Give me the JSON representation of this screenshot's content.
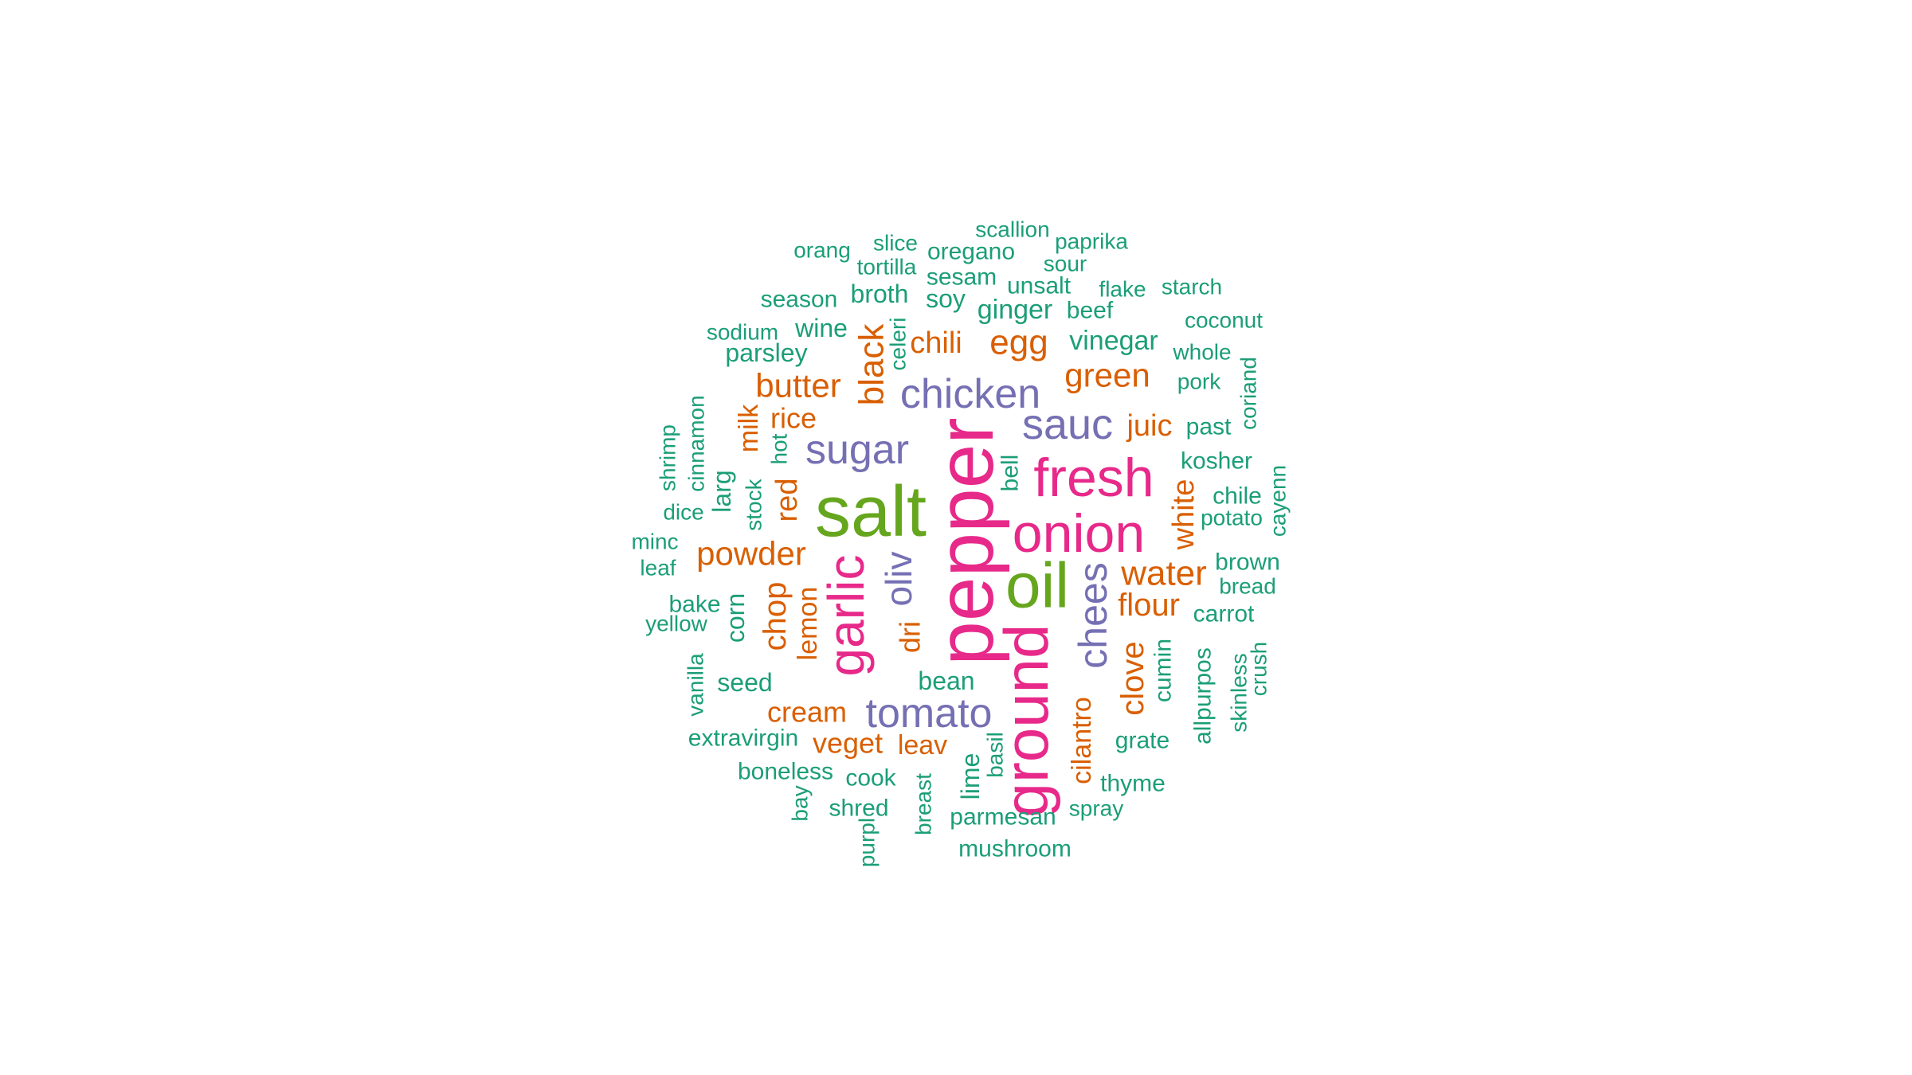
{
  "colors": {
    "background": "#ffffff",
    "teal": "#1b9e77",
    "orange": "#d95f02",
    "purple": "#7570b3",
    "pink": "#e7298a",
    "green": "#66a61e"
  },
  "words": [
    {
      "text": "pepper",
      "color": "pink"
    },
    {
      "text": "salt",
      "color": "green"
    },
    {
      "text": "oil",
      "color": "green"
    },
    {
      "text": "onion",
      "color": "pink"
    },
    {
      "text": "ground",
      "color": "pink"
    },
    {
      "text": "fresh",
      "color": "pink"
    },
    {
      "text": "garlic",
      "color": "pink"
    },
    {
      "text": "sugar",
      "color": "purple"
    },
    {
      "text": "chicken",
      "color": "purple"
    },
    {
      "text": "sauc",
      "color": "purple"
    },
    {
      "text": "tomato",
      "color": "purple"
    },
    {
      "text": "chees",
      "color": "purple"
    },
    {
      "text": "oliv",
      "color": "purple"
    },
    {
      "text": "water",
      "color": "orange"
    },
    {
      "text": "powder",
      "color": "orange"
    },
    {
      "text": "flour",
      "color": "orange"
    },
    {
      "text": "butter",
      "color": "orange"
    },
    {
      "text": "green",
      "color": "orange"
    },
    {
      "text": "black",
      "color": "orange"
    },
    {
      "text": "egg",
      "color": "orange"
    },
    {
      "text": "chili",
      "color": "orange"
    },
    {
      "text": "juic",
      "color": "orange"
    },
    {
      "text": "red",
      "color": "orange"
    },
    {
      "text": "chop",
      "color": "orange"
    },
    {
      "text": "white",
      "color": "orange"
    },
    {
      "text": "clove",
      "color": "orange"
    },
    {
      "text": "cream",
      "color": "orange"
    },
    {
      "text": "veget",
      "color": "orange"
    },
    {
      "text": "rice",
      "color": "orange"
    },
    {
      "text": "milk",
      "color": "orange"
    },
    {
      "text": "lemon",
      "color": "orange"
    },
    {
      "text": "dri",
      "color": "orange"
    },
    {
      "text": "leav",
      "color": "orange"
    },
    {
      "text": "cilantro",
      "color": "orange"
    },
    {
      "text": "larg",
      "color": "teal"
    },
    {
      "text": "corn",
      "color": "teal"
    },
    {
      "text": "ginger",
      "color": "teal"
    },
    {
      "text": "vinegar",
      "color": "teal"
    },
    {
      "text": "wine",
      "color": "teal"
    },
    {
      "text": "broth",
      "color": "teal"
    },
    {
      "text": "soy",
      "color": "teal"
    },
    {
      "text": "parsley",
      "color": "teal"
    },
    {
      "text": "seed",
      "color": "teal"
    },
    {
      "text": "bean",
      "color": "teal"
    },
    {
      "text": "cook",
      "color": "teal"
    },
    {
      "text": "lime",
      "color": "teal"
    },
    {
      "text": "bell",
      "color": "teal"
    },
    {
      "text": "cumin",
      "color": "teal"
    },
    {
      "text": "allpurpos",
      "color": "teal"
    },
    {
      "text": "grate",
      "color": "teal"
    },
    {
      "text": "carrot",
      "color": "teal"
    },
    {
      "text": "potato",
      "color": "teal"
    },
    {
      "text": "chile",
      "color": "teal"
    },
    {
      "text": "kosher",
      "color": "teal"
    },
    {
      "text": "past",
      "color": "teal"
    },
    {
      "text": "pork",
      "color": "teal"
    },
    {
      "text": "whole",
      "color": "teal"
    },
    {
      "text": "coconut",
      "color": "teal"
    },
    {
      "text": "starch",
      "color": "teal"
    },
    {
      "text": "flake",
      "color": "teal"
    },
    {
      "text": "beef",
      "color": "teal"
    },
    {
      "text": "unsalt",
      "color": "teal"
    },
    {
      "text": "sesam",
      "color": "teal"
    },
    {
      "text": "oregano",
      "color": "teal"
    },
    {
      "text": "sour",
      "color": "teal"
    },
    {
      "text": "paprika",
      "color": "teal"
    },
    {
      "text": "scallion",
      "color": "teal"
    },
    {
      "text": "slice",
      "color": "teal"
    },
    {
      "text": "tortilla",
      "color": "teal"
    },
    {
      "text": "orang",
      "color": "teal"
    },
    {
      "text": "season",
      "color": "teal"
    },
    {
      "text": "sodium",
      "color": "teal"
    },
    {
      "text": "celeri",
      "color": "teal"
    },
    {
      "text": "hot",
      "color": "teal"
    },
    {
      "text": "stock",
      "color": "teal"
    },
    {
      "text": "cinnamon",
      "color": "teal"
    },
    {
      "text": "shrimp",
      "color": "teal"
    },
    {
      "text": "dice",
      "color": "teal"
    },
    {
      "text": "minc",
      "color": "teal"
    },
    {
      "text": "leaf",
      "color": "teal"
    },
    {
      "text": "bake",
      "color": "teal"
    },
    {
      "text": "yellow",
      "color": "teal"
    },
    {
      "text": "vanilla",
      "color": "teal"
    },
    {
      "text": "extravirgin",
      "color": "teal"
    },
    {
      "text": "boneless",
      "color": "teal"
    },
    {
      "text": "bay",
      "color": "teal"
    },
    {
      "text": "shred",
      "color": "teal"
    },
    {
      "text": "purpl",
      "color": "teal"
    },
    {
      "text": "breast",
      "color": "teal"
    },
    {
      "text": "parmesan",
      "color": "teal"
    },
    {
      "text": "mushroom",
      "color": "teal"
    },
    {
      "text": "basil",
      "color": "teal"
    },
    {
      "text": "spray",
      "color": "teal"
    },
    {
      "text": "thyme",
      "color": "teal"
    },
    {
      "text": "skinless",
      "color": "teal"
    },
    {
      "text": "crush",
      "color": "teal"
    },
    {
      "text": "cayenn",
      "color": "teal"
    },
    {
      "text": "coriand",
      "color": "teal"
    },
    {
      "text": "brown",
      "color": "teal"
    },
    {
      "text": "bread",
      "color": "teal"
    }
  ]
}
